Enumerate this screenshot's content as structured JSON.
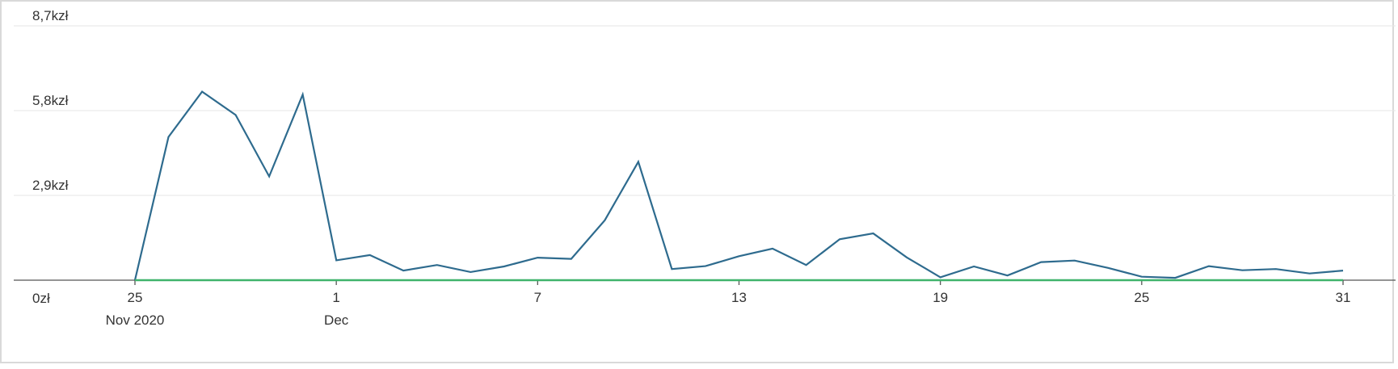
{
  "chart_data": {
    "type": "line",
    "title": "",
    "xlabel": "",
    "ylabel": "",
    "x_start": "2020-11-25",
    "x_end": "2020-12-31",
    "x_ticks": [
      {
        "date": "2020-11-25",
        "label": "25",
        "sublabel": "Nov 2020"
      },
      {
        "date": "2020-12-01",
        "label": "1",
        "sublabel": "Dec"
      },
      {
        "date": "2020-12-07",
        "label": "7",
        "sublabel": ""
      },
      {
        "date": "2020-12-13",
        "label": "13",
        "sublabel": ""
      },
      {
        "date": "2020-12-19",
        "label": "19",
        "sublabel": ""
      },
      {
        "date": "2020-12-25",
        "label": "25",
        "sublabel": ""
      },
      {
        "date": "2020-12-31",
        "label": "31",
        "sublabel": ""
      }
    ],
    "y_ticks": [
      {
        "value": 0,
        "label": "0zł"
      },
      {
        "value": 2900,
        "label": "2,9kzł"
      },
      {
        "value": 5800,
        "label": "5,8kzł"
      },
      {
        "value": 8700,
        "label": "8,7kzł"
      }
    ],
    "ylim": [
      0,
      8700
    ],
    "grid": true,
    "x": [
      "2020-11-25",
      "2020-11-26",
      "2020-11-27",
      "2020-11-28",
      "2020-11-29",
      "2020-11-30",
      "2020-12-01",
      "2020-12-02",
      "2020-12-03",
      "2020-12-04",
      "2020-12-05",
      "2020-12-06",
      "2020-12-07",
      "2020-12-08",
      "2020-12-09",
      "2020-12-10",
      "2020-12-11",
      "2020-12-12",
      "2020-12-13",
      "2020-12-14",
      "2020-12-15",
      "2020-12-16",
      "2020-12-17",
      "2020-12-18",
      "2020-12-19",
      "2020-12-20",
      "2020-12-21",
      "2020-12-22",
      "2020-12-23",
      "2020-12-24",
      "2020-12-25",
      "2020-12-26",
      "2020-12-27",
      "2020-12-28",
      "2020-12-29",
      "2020-12-30",
      "2020-12-31"
    ],
    "series": [
      {
        "color": "#2e6b8e",
        "values": [
          0,
          4900,
          6450,
          5650,
          3550,
          6350,
          680,
          860,
          330,
          520,
          280,
          470,
          770,
          730,
          2050,
          4050,
          380,
          480,
          820,
          1080,
          520,
          1400,
          1600,
          780,
          100,
          470,
          160,
          620,
          670,
          420,
          120,
          80,
          480,
          340,
          380,
          230,
          330
        ]
      },
      {
        "color": "#3fb36b",
        "values": [
          0,
          0,
          0,
          0,
          0,
          0,
          0,
          0,
          0,
          0,
          0,
          0,
          0,
          0,
          0,
          0,
          0,
          0,
          0,
          0,
          0,
          0,
          0,
          0,
          0,
          0,
          0,
          0,
          0,
          0,
          0,
          0,
          0,
          0,
          0,
          0,
          0
        ]
      }
    ]
  }
}
